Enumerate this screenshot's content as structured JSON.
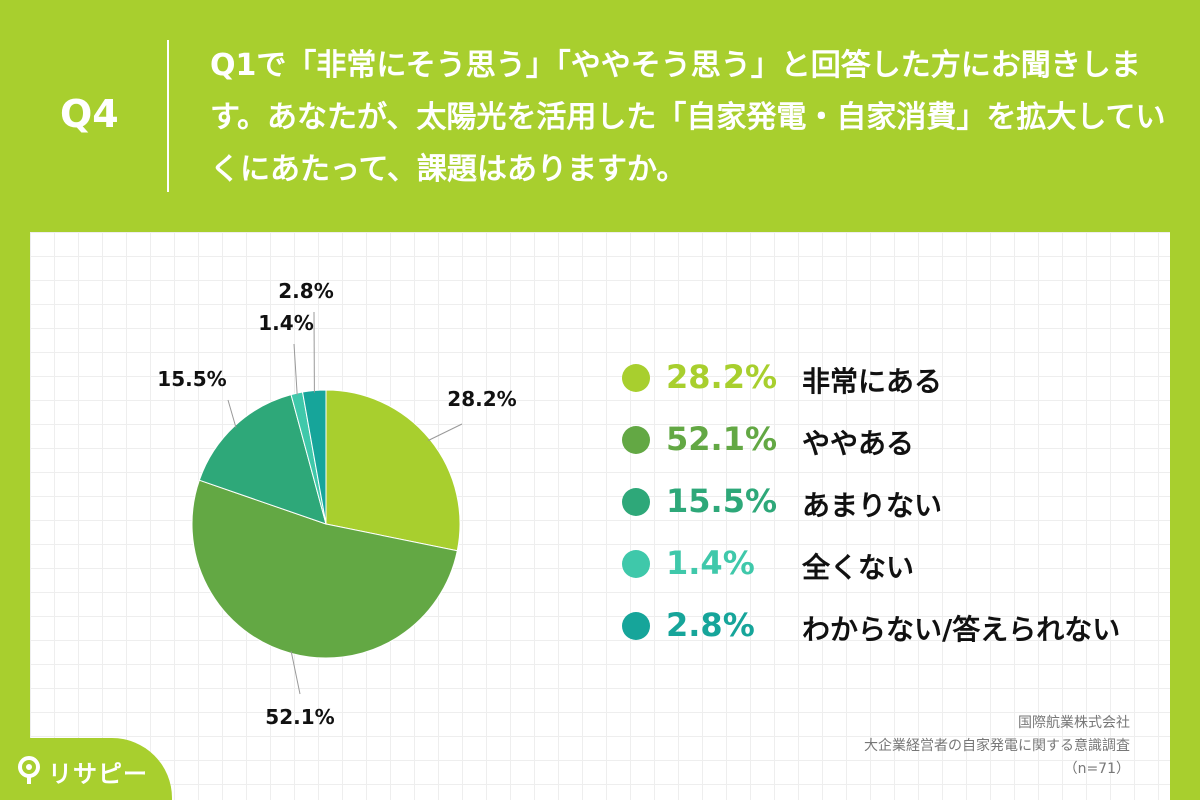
{
  "header": {
    "question_label": "Q4",
    "question_text": "Q1で「非常にそう思う」「ややそう思う」と回答した方にお聞きします。あなたが、太陽光を活用した「自家発電・自家消費」を拡大していくにあたって、課題はありますか。"
  },
  "chart_data": {
    "type": "pie",
    "categories": [
      "非常にある",
      "ややある",
      "あまりない",
      "全くない",
      "わからない/答えられない"
    ],
    "values": [
      28.2,
      52.1,
      15.5,
      1.4,
      2.8
    ],
    "value_labels": [
      "28.2%",
      "52.1%",
      "15.5%",
      "1.4%",
      "2.8%"
    ],
    "colors": [
      "#a8cf2e",
      "#63a844",
      "#2ea879",
      "#3fc8aa",
      "#16a59a"
    ],
    "start_angle": "12 o'clock",
    "direction": "clockwise",
    "legend_position": "right"
  },
  "legend": [
    {
      "pct": "28.2%",
      "label": "非常にある",
      "color": "#a8cf2e"
    },
    {
      "pct": "52.1%",
      "label": "ややある",
      "color": "#63a844"
    },
    {
      "pct": "15.5%",
      "label": "あまりない",
      "color": "#2ea879"
    },
    {
      "pct": "1.4%",
      "label": "全くない",
      "color": "#3fc8aa"
    },
    {
      "pct": "2.8%",
      "label": "わからない/答えられない",
      "color": "#16a59a"
    }
  ],
  "source": {
    "line1": "国際航業株式会社",
    "line2": "大企業経営者の自家発電に関する意識調査",
    "line3": "（n=71）"
  },
  "brand": {
    "name": "リサピー"
  }
}
